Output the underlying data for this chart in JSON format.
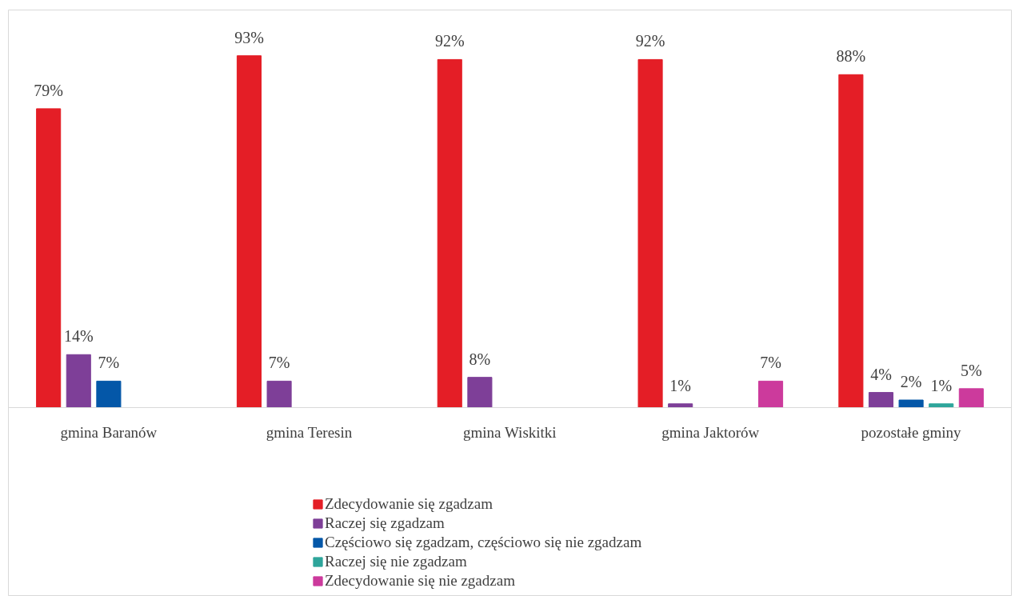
{
  "chart_data": {
    "type": "bar",
    "categories": [
      "gmina Baranów",
      "gmina Teresin",
      "gmina Wiskitki",
      "gmina Jaktorów",
      "pozostałe gminy"
    ],
    "series": [
      {
        "name": "Zdecydowanie się zgadzam",
        "color": "#e41e26",
        "values": [
          79,
          93,
          92,
          92,
          88
        ],
        "value_labels": [
          "79%",
          "93%",
          "92%",
          "92%",
          "88%"
        ]
      },
      {
        "name": "Raczej się zgadzam",
        "color": "#7e3f98",
        "values": [
          14,
          7,
          8,
          1,
          4
        ],
        "value_labels": [
          "14%",
          "7%",
          "8%",
          "1%",
          "4%"
        ]
      },
      {
        "name": "Częściowo się zgadzam, częściowo się nie zgadzam",
        "color": "#0457a8",
        "values": [
          7,
          null,
          null,
          null,
          2
        ],
        "value_labels": [
          "7%",
          null,
          null,
          null,
          "2%"
        ]
      },
      {
        "name": "Raczej się nie zgadzam",
        "color": "#2ea59b",
        "values": [
          null,
          null,
          null,
          null,
          1
        ],
        "value_labels": [
          null,
          null,
          null,
          null,
          "1%"
        ]
      },
      {
        "name": "Zdecydowanie się nie zgadzam",
        "color": "#cc3a9c",
        "values": [
          null,
          null,
          null,
          7,
          5
        ],
        "value_labels": [
          null,
          null,
          null,
          "7%",
          "5%"
        ]
      }
    ],
    "tick_labels": "x",
    "legend": "bottom"
  }
}
